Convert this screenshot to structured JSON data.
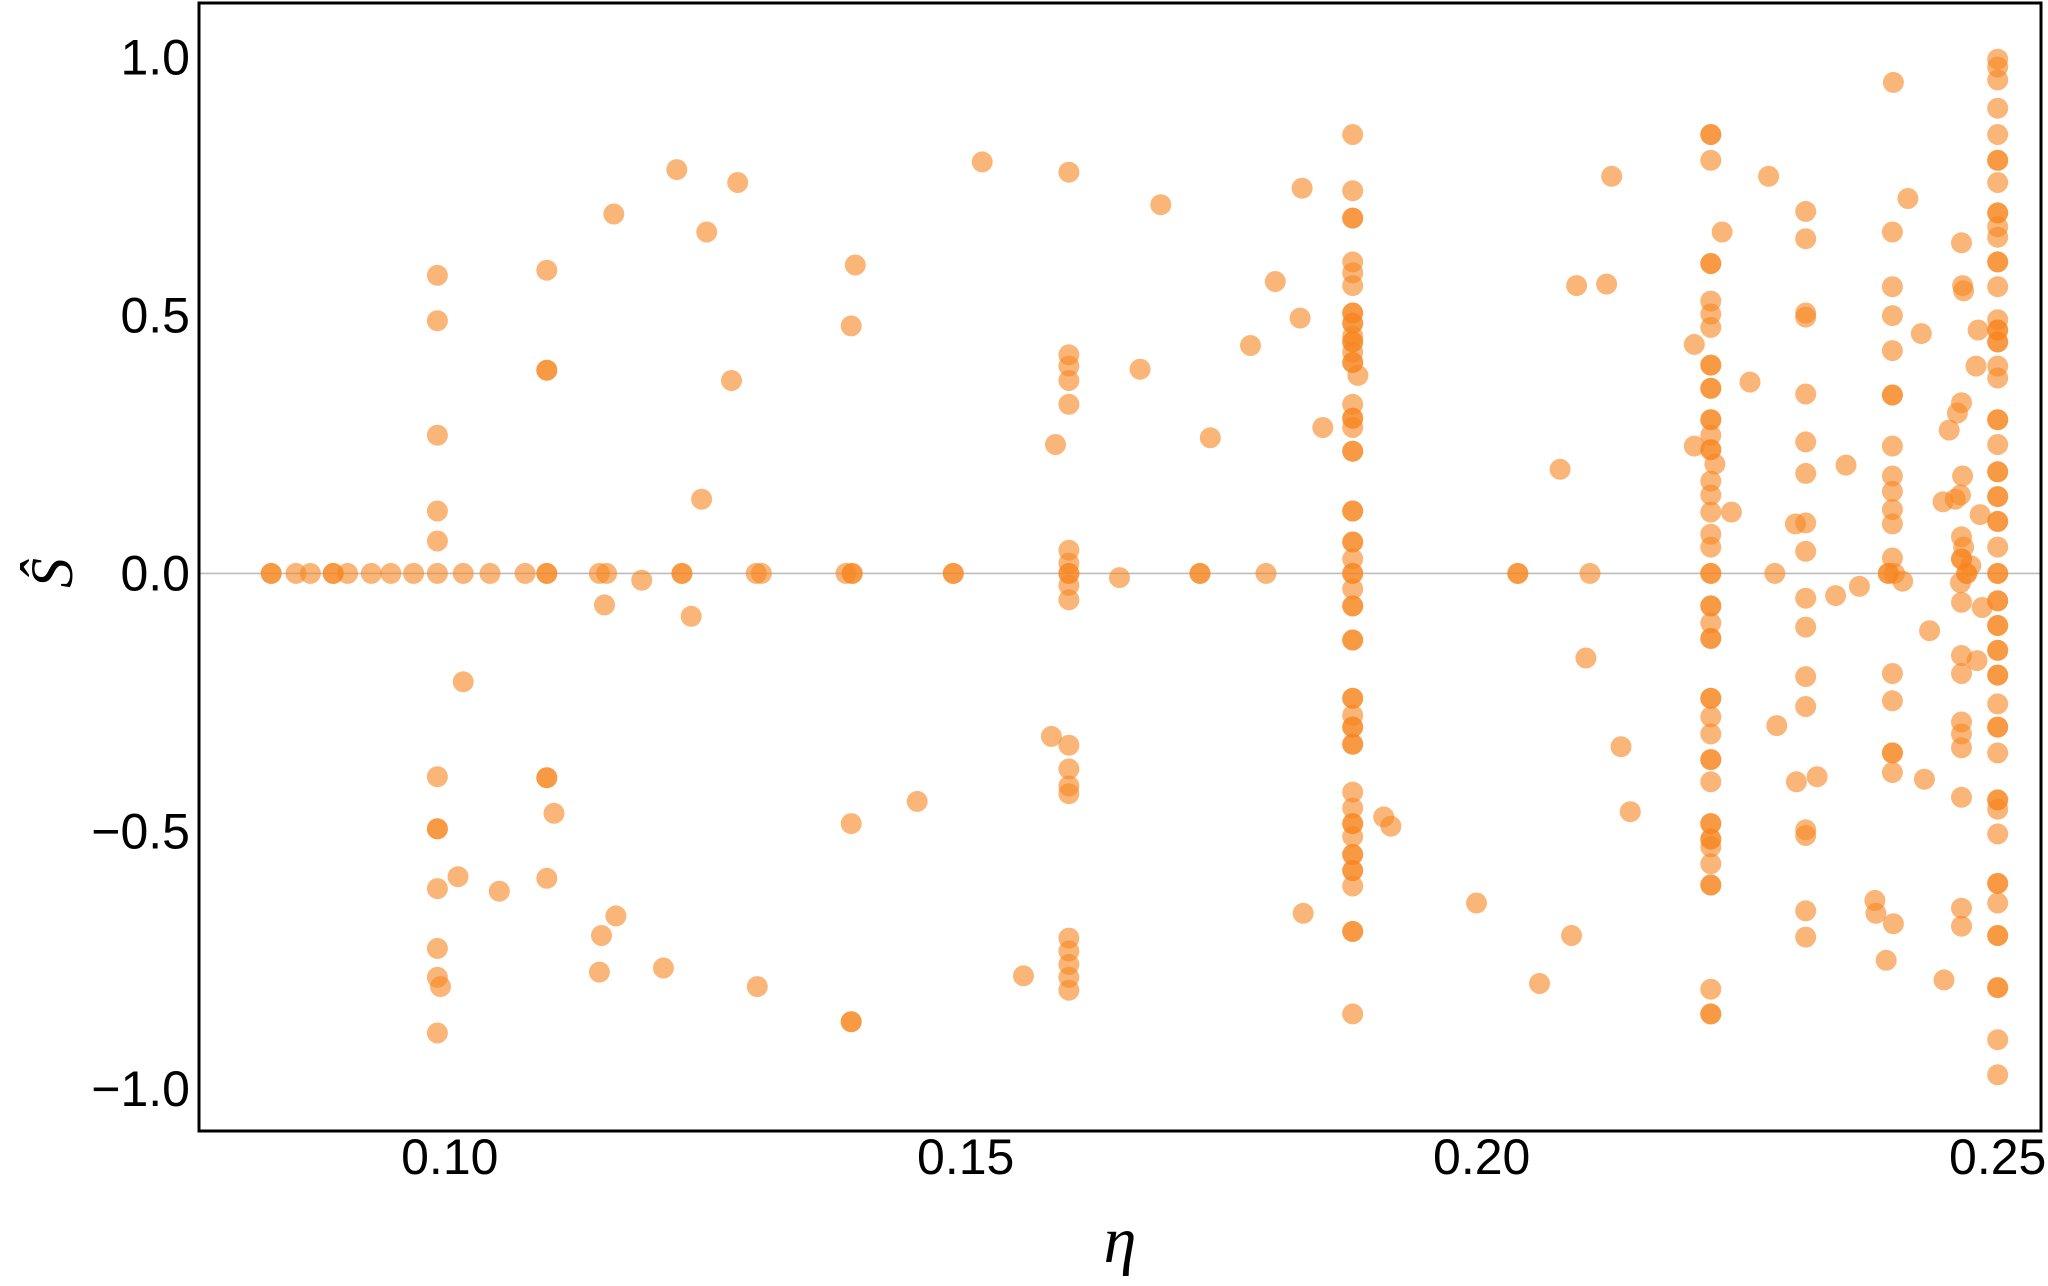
{
  "chart_data": {
    "type": "scatter",
    "xlabel": "η",
    "ylabel": "Ŝ",
    "xlim": [
      0.0757,
      0.2542
    ],
    "ylim": [
      -1.081,
      1.106
    ],
    "x_ticks": [
      0.1,
      0.15,
      0.2,
      0.25
    ],
    "x_tick_labels": [
      "0.10",
      "0.15",
      "0.20",
      "0.25"
    ],
    "y_ticks": [
      1.0,
      0.5,
      0.0,
      -0.5,
      -1.0
    ],
    "y_tick_labels": [
      "1.0",
      "0.5",
      "0.0",
      "−0.5",
      "−1.0"
    ],
    "grid": false,
    "zero_line": true,
    "colors": {
      "points": "#F7861F",
      "zero_line": "#BDBDBD"
    },
    "points": [
      [
        0.0827,
        0
      ],
      [
        0.0827,
        0
      ],
      [
        0.0851,
        0
      ],
      [
        0.0865,
        0
      ],
      [
        0.0887,
        0
      ],
      [
        0.0887,
        0
      ],
      [
        0.0901,
        0
      ],
      [
        0.0924,
        0
      ],
      [
        0.0943,
        0
      ],
      [
        0.0965,
        0
      ],
      [
        0.0988,
        0.578
      ],
      [
        0.0988,
        0.49
      ],
      [
        0.0988,
        0.268
      ],
      [
        0.0988,
        0.121
      ],
      [
        0.0988,
        0.063
      ],
      [
        0.0988,
        0
      ],
      [
        0.0988,
        -0.394
      ],
      [
        0.0988,
        -0.495
      ],
      [
        0.0988,
        -0.495
      ],
      [
        0.0988,
        -0.611
      ],
      [
        0.0988,
        -0.727
      ],
      [
        0.0988,
        -0.783
      ],
      [
        0.0991,
        -0.801
      ],
      [
        0.0988,
        -0.891
      ],
      [
        0.1008,
        -0.588
      ],
      [
        0.1013,
        0
      ],
      [
        0.1013,
        -0.21
      ],
      [
        0.1039,
        0
      ],
      [
        0.1048,
        -0.616
      ],
      [
        0.1073,
        0
      ],
      [
        0.1094,
        0.588
      ],
      [
        0.1094,
        0.394
      ],
      [
        0.1094,
        0.394
      ],
      [
        0.1094,
        0
      ],
      [
        0.1094,
        0
      ],
      [
        0.1094,
        -0.396
      ],
      [
        0.1094,
        -0.396
      ],
      [
        0.1094,
        -0.591
      ],
      [
        0.1101,
        -0.465
      ],
      [
        0.1145,
        0
      ],
      [
        0.1152,
        0
      ],
      [
        0.115,
        -0.061
      ],
      [
        0.1147,
        -0.702
      ],
      [
        0.1145,
        -0.773
      ],
      [
        0.1159,
        0.697
      ],
      [
        0.1161,
        -0.664
      ],
      [
        0.1186,
        -0.013
      ],
      [
        0.1207,
        -0.765
      ],
      [
        0.122,
        0.783
      ],
      [
        0.1225,
        0
      ],
      [
        0.1225,
        0
      ],
      [
        0.1234,
        -0.083
      ],
      [
        0.1244,
        0.144
      ],
      [
        0.1249,
        0.662
      ],
      [
        0.1273,
        0.374
      ],
      [
        0.1279,
        0.758
      ],
      [
        0.1297,
        0
      ],
      [
        0.1302,
        0
      ],
      [
        0.1298,
        -0.801
      ],
      [
        0.1393,
        0.598
      ],
      [
        0.1389,
        0.48
      ],
      [
        0.1384,
        0
      ],
      [
        0.139,
        0
      ],
      [
        0.139,
        0
      ],
      [
        0.1389,
        -0.485
      ],
      [
        0.1389,
        -0.869
      ],
      [
        0.1389,
        -0.869
      ],
      [
        0.1453,
        -0.442
      ],
      [
        0.1488,
        0
      ],
      [
        0.1488,
        0
      ],
      [
        0.1516,
        0.798
      ],
      [
        0.1556,
        -0.78
      ],
      [
        0.1583,
        -0.316
      ],
      [
        0.1587,
        0.25
      ],
      [
        0.16,
        0.778
      ],
      [
        0.16,
        0.424
      ],
      [
        0.16,
        0.402
      ],
      [
        0.16,
        0.374
      ],
      [
        0.16,
        0.328
      ],
      [
        0.16,
        0.045
      ],
      [
        0.16,
        0.02
      ],
      [
        0.16,
        0
      ],
      [
        0.16,
        0
      ],
      [
        0.16,
        -0.023
      ],
      [
        0.16,
        -0.051
      ],
      [
        0.16,
        -0.333
      ],
      [
        0.16,
        -0.379
      ],
      [
        0.16,
        -0.412
      ],
      [
        0.16,
        -0.427
      ],
      [
        0.16,
        -0.707
      ],
      [
        0.16,
        -0.732
      ],
      [
        0.16,
        -0.758
      ],
      [
        0.16,
        -0.783
      ],
      [
        0.16,
        -0.808
      ],
      [
        0.1649,
        -0.008
      ],
      [
        0.1669,
        0.396
      ],
      [
        0.1689,
        0.715
      ],
      [
        0.1727,
        0
      ],
      [
        0.1727,
        0
      ],
      [
        0.1737,
        0.263
      ],
      [
        0.1776,
        0.442
      ],
      [
        0.1791,
        0
      ],
      [
        0.18,
        0.566
      ],
      [
        0.1824,
        0.495
      ],
      [
        0.1826,
        0.747
      ],
      [
        0.1827,
        -0.659
      ],
      [
        0.1846,
        0.283
      ],
      [
        0.1875,
        0.851
      ],
      [
        0.1875,
        0.742
      ],
      [
        0.1875,
        0.689
      ],
      [
        0.1875,
        0.689
      ],
      [
        0.1875,
        0.604
      ],
      [
        0.1875,
        0.583
      ],
      [
        0.1875,
        0.558
      ],
      [
        0.1875,
        0.505
      ],
      [
        0.1875,
        0.505
      ],
      [
        0.1875,
        0.485
      ],
      [
        0.1875,
        0.485
      ],
      [
        0.1875,
        0.46
      ],
      [
        0.1875,
        0.449
      ],
      [
        0.1875,
        0.449
      ],
      [
        0.1875,
        0.429
      ],
      [
        0.1875,
        0.409
      ],
      [
        0.1875,
        0.409
      ],
      [
        0.188,
        0.384
      ],
      [
        0.1875,
        0.328
      ],
      [
        0.1875,
        0.301
      ],
      [
        0.1875,
        0.301
      ],
      [
        0.1875,
        0.283
      ],
      [
        0.1875,
        0.237
      ],
      [
        0.1875,
        0.237
      ],
      [
        0.1875,
        0.121
      ],
      [
        0.1875,
        0.121
      ],
      [
        0.1875,
        0.061
      ],
      [
        0.1875,
        0.061
      ],
      [
        0.1875,
        0.028
      ],
      [
        0.1875,
        0
      ],
      [
        0.1875,
        0
      ],
      [
        0.1875,
        -0.03
      ],
      [
        0.1875,
        -0.063
      ],
      [
        0.1875,
        -0.063
      ],
      [
        0.1875,
        -0.129
      ],
      [
        0.1875,
        -0.129
      ],
      [
        0.1875,
        -0.242
      ],
      [
        0.1875,
        -0.242
      ],
      [
        0.1875,
        -0.275
      ],
      [
        0.1875,
        -0.298
      ],
      [
        0.1875,
        -0.298
      ],
      [
        0.1875,
        -0.331
      ],
      [
        0.1875,
        -0.331
      ],
      [
        0.1875,
        -0.424
      ],
      [
        0.1875,
        -0.455
      ],
      [
        0.1875,
        -0.485
      ],
      [
        0.1875,
        -0.485
      ],
      [
        0.1875,
        -0.51
      ],
      [
        0.1875,
        -0.545
      ],
      [
        0.1875,
        -0.545
      ],
      [
        0.1875,
        -0.576
      ],
      [
        0.1875,
        -0.576
      ],
      [
        0.1875,
        -0.606
      ],
      [
        0.1875,
        -0.694
      ],
      [
        0.1875,
        -0.694
      ],
      [
        0.1875,
        -0.854
      ],
      [
        0.1905,
        -0.472
      ],
      [
        0.1912,
        -0.49
      ],
      [
        0.1995,
        -0.639
      ],
      [
        0.2035,
        0
      ],
      [
        0.2035,
        0
      ],
      [
        0.2056,
        -0.795
      ],
      [
        0.2076,
        0.202
      ],
      [
        0.2087,
        -0.702
      ],
      [
        0.2092,
        0.558
      ],
      [
        0.2101,
        -0.164
      ],
      [
        0.2105,
        0
      ],
      [
        0.2121,
        0.561
      ],
      [
        0.2126,
        0.77
      ],
      [
        0.2135,
        -0.336
      ],
      [
        0.2144,
        -0.462
      ],
      [
        0.2206,
        0.444
      ],
      [
        0.2206,
        0.247
      ],
      [
        0.2222,
        0.851
      ],
      [
        0.2222,
        0.851
      ],
      [
        0.2222,
        0.801
      ],
      [
        0.2222,
        0.601
      ],
      [
        0.2222,
        0.601
      ],
      [
        0.2222,
        0.528
      ],
      [
        0.2222,
        0.503
      ],
      [
        0.2222,
        0.477
      ],
      [
        0.2222,
        0.404
      ],
      [
        0.2222,
        0.404
      ],
      [
        0.2222,
        0.359
      ],
      [
        0.2222,
        0.359
      ],
      [
        0.2222,
        0.298
      ],
      [
        0.2222,
        0.298
      ],
      [
        0.2222,
        0.268
      ],
      [
        0.2222,
        0.24
      ],
      [
        0.2222,
        0.24
      ],
      [
        0.2226,
        0.212
      ],
      [
        0.2222,
        0.179
      ],
      [
        0.2222,
        0.152
      ],
      [
        0.2222,
        0.119
      ],
      [
        0.2222,
        0.076
      ],
      [
        0.2222,
        0.051
      ],
      [
        0.2222,
        0
      ],
      [
        0.2222,
        0
      ],
      [
        0.2222,
        -0.063
      ],
      [
        0.2222,
        -0.063
      ],
      [
        0.2222,
        -0.096
      ],
      [
        0.2222,
        -0.126
      ],
      [
        0.2222,
        -0.126
      ],
      [
        0.2222,
        -0.242
      ],
      [
        0.2222,
        -0.242
      ],
      [
        0.2222,
        -0.278
      ],
      [
        0.2222,
        -0.311
      ],
      [
        0.2222,
        -0.361
      ],
      [
        0.2222,
        -0.361
      ],
      [
        0.2222,
        -0.404
      ],
      [
        0.2222,
        -0.485
      ],
      [
        0.2222,
        -0.485
      ],
      [
        0.2222,
        -0.515
      ],
      [
        0.2222,
        -0.515
      ],
      [
        0.2222,
        -0.53
      ],
      [
        0.2222,
        -0.563
      ],
      [
        0.2222,
        -0.604
      ],
      [
        0.2222,
        -0.604
      ],
      [
        0.2222,
        -0.806
      ],
      [
        0.2222,
        -0.854
      ],
      [
        0.2222,
        -0.854
      ],
      [
        0.2233,
        0.662
      ],
      [
        0.2242,
        0.119
      ],
      [
        0.226,
        0.371
      ],
      [
        0.2278,
        0.77
      ],
      [
        0.2284,
        0
      ],
      [
        0.2286,
        -0.295
      ],
      [
        0.2305,
        -0.404
      ],
      [
        0.2304,
        0.096
      ],
      [
        0.2314,
        0.702
      ],
      [
        0.2314,
        0.649
      ],
      [
        0.2314,
        0.505
      ],
      [
        0.2314,
        0.497
      ],
      [
        0.2314,
        0.348
      ],
      [
        0.2314,
        0.255
      ],
      [
        0.2314,
        0.194
      ],
      [
        0.2314,
        0.098
      ],
      [
        0.2314,
        0.043
      ],
      [
        0.2314,
        -0.048
      ],
      [
        0.2314,
        -0.104
      ],
      [
        0.2314,
        -0.2
      ],
      [
        0.2314,
        -0.258
      ],
      [
        0.2314,
        -0.497
      ],
      [
        0.2314,
        -0.508
      ],
      [
        0.2314,
        -0.654
      ],
      [
        0.2314,
        -0.705
      ],
      [
        0.2325,
        -0.394
      ],
      [
        0.2343,
        -0.043
      ],
      [
        0.2353,
        0.21
      ],
      [
        0.2366,
        -0.025
      ],
      [
        0.2381,
        -0.634
      ],
      [
        0.2382,
        -0.659
      ],
      [
        0.2399,
        0.952
      ],
      [
        0.2398,
        0.662
      ],
      [
        0.2398,
        0.556
      ],
      [
        0.2398,
        0.5
      ],
      [
        0.2398,
        0.432
      ],
      [
        0.2398,
        0.346
      ],
      [
        0.2398,
        0.346
      ],
      [
        0.2398,
        0.247
      ],
      [
        0.2398,
        0.189
      ],
      [
        0.2398,
        0.159
      ],
      [
        0.2398,
        0.124
      ],
      [
        0.2398,
        0.096
      ],
      [
        0.2398,
        0.03
      ],
      [
        0.2394,
        0
      ],
      [
        0.2394,
        0
      ],
      [
        0.24,
        0
      ],
      [
        0.2398,
        -0.194
      ],
      [
        0.2398,
        -0.247
      ],
      [
        0.2398,
        -0.348
      ],
      [
        0.2398,
        -0.348
      ],
      [
        0.2398,
        -0.386
      ],
      [
        0.2399,
        -0.679
      ],
      [
        0.2392,
        -0.75
      ],
      [
        0.2413,
        0.727
      ],
      [
        0.2408,
        -0.015
      ],
      [
        0.2426,
        0.465
      ],
      [
        0.2429,
        -0.399
      ],
      [
        0.2434,
        -0.111
      ],
      [
        0.2447,
        0.139
      ],
      [
        0.2448,
        -0.788
      ],
      [
        0.2453,
        0.278
      ],
      [
        0.2459,
        0.144
      ],
      [
        0.2465,
        0.641
      ],
      [
        0.2461,
        0.311
      ],
      [
        0.2466,
        0.558
      ],
      [
        0.2467,
        0.548
      ],
      [
        0.2465,
        0.331
      ],
      [
        0.2466,
        0.189
      ],
      [
        0.2464,
        0.152
      ],
      [
        0.2465,
        0.071
      ],
      [
        0.2467,
        0.051
      ],
      [
        0.2465,
        0.028
      ],
      [
        0.2465,
        0.028
      ],
      [
        0.247,
        0
      ],
      [
        0.247,
        0
      ],
      [
        0.2464,
        -0.018
      ],
      [
        0.2465,
        -0.056
      ],
      [
        0.2465,
        -0.159
      ],
      [
        0.2465,
        -0.194
      ],
      [
        0.2465,
        -0.288
      ],
      [
        0.2465,
        -0.311
      ],
      [
        0.2465,
        -0.338
      ],
      [
        0.2465,
        -0.434
      ],
      [
        0.2465,
        -0.649
      ],
      [
        0.2465,
        -0.684
      ],
      [
        0.2474,
        0.015
      ],
      [
        0.2479,
        0.402
      ],
      [
        0.2481,
        0.472
      ],
      [
        0.2483,
        0.114
      ],
      [
        0.248,
        -0.169
      ],
      [
        0.2485,
        -0.066
      ],
      [
        0.25,
        0.997
      ],
      [
        0.25,
        0.982
      ],
      [
        0.25,
        0.957
      ],
      [
        0.25,
        0.902
      ],
      [
        0.25,
        0.851
      ],
      [
        0.25,
        0.801
      ],
      [
        0.25,
        0.801
      ],
      [
        0.25,
        0.758
      ],
      [
        0.25,
        0.699
      ],
      [
        0.25,
        0.699
      ],
      [
        0.25,
        0.672
      ],
      [
        0.25,
        0.652
      ],
      [
        0.25,
        0.604
      ],
      [
        0.25,
        0.604
      ],
      [
        0.25,
        0.556
      ],
      [
        0.25,
        0.492
      ],
      [
        0.25,
        0.472
      ],
      [
        0.25,
        0.472
      ],
      [
        0.25,
        0.449
      ],
      [
        0.25,
        0.449
      ],
      [
        0.25,
        0.402
      ],
      [
        0.25,
        0.379
      ],
      [
        0.25,
        0.298
      ],
      [
        0.25,
        0.298
      ],
      [
        0.25,
        0.25
      ],
      [
        0.25,
        0.197
      ],
      [
        0.25,
        0.197
      ],
      [
        0.25,
        0.149
      ],
      [
        0.25,
        0.149
      ],
      [
        0.25,
        0.101
      ],
      [
        0.25,
        0.101
      ],
      [
        0.25,
        0.051
      ],
      [
        0.25,
        0
      ],
      [
        0.25,
        0
      ],
      [
        0.25,
        -0.053
      ],
      [
        0.25,
        -0.053
      ],
      [
        0.25,
        -0.101
      ],
      [
        0.25,
        -0.101
      ],
      [
        0.25,
        -0.149
      ],
      [
        0.25,
        -0.149
      ],
      [
        0.25,
        -0.197
      ],
      [
        0.25,
        -0.197
      ],
      [
        0.25,
        -0.253
      ],
      [
        0.25,
        -0.298
      ],
      [
        0.25,
        -0.298
      ],
      [
        0.25,
        -0.348
      ],
      [
        0.25,
        -0.439
      ],
      [
        0.25,
        -0.439
      ],
      [
        0.25,
        -0.457
      ],
      [
        0.25,
        -0.505
      ],
      [
        0.25,
        -0.601
      ],
      [
        0.25,
        -0.601
      ],
      [
        0.25,
        -0.639
      ],
      [
        0.25,
        -0.702
      ],
      [
        0.25,
        -0.702
      ],
      [
        0.25,
        -0.803
      ],
      [
        0.25,
        -0.803
      ],
      [
        0.25,
        -0.904
      ],
      [
        0.25,
        -0.972
      ]
    ]
  }
}
